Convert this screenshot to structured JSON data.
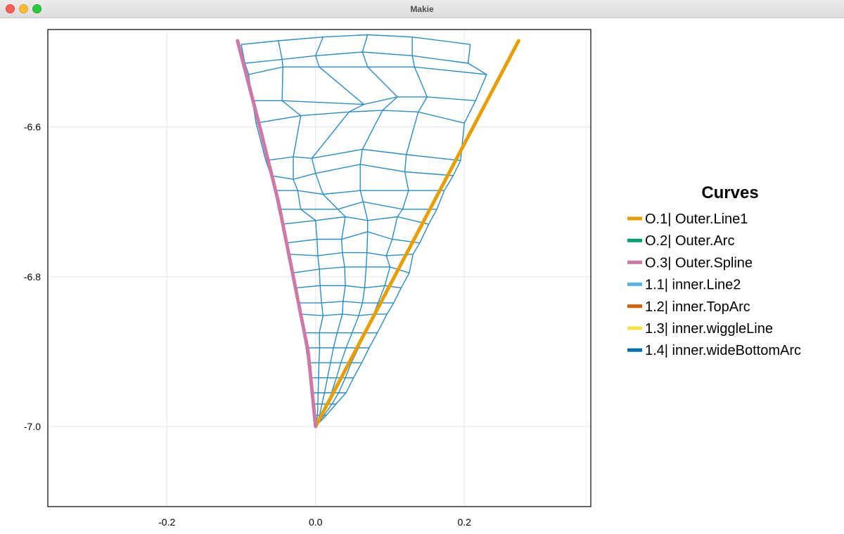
{
  "window": {
    "title": "Makie",
    "buttons": [
      "close",
      "minimize",
      "maximize"
    ]
  },
  "chart_data": {
    "type": "line",
    "xlim": [
      -0.36,
      0.37
    ],
    "ylim": [
      -7.107,
      -6.47
    ],
    "xticks": [
      -0.2,
      0.0,
      0.2
    ],
    "xtick_labels": [
      "-0.2",
      "0.0",
      "0.2"
    ],
    "yticks": [
      -6.6,
      -6.8,
      -7.0
    ],
    "ytick_labels": [
      "-6.6",
      "-6.8",
      "-7.0"
    ],
    "grid": true,
    "legend": {
      "title": "Curves",
      "placement": "right",
      "entries": [
        {
          "label": "O.1| Outer.Line1",
          "color": "#e69f00"
        },
        {
          "label": "O.2| Outer.Arc",
          "color": "#009e73"
        },
        {
          "label": "O.3| Outer.Spline",
          "color": "#cc79a7"
        },
        {
          "label": "1.1| inner.Line2",
          "color": "#56b4e9"
        },
        {
          "label": "1.2| inner.TopArc",
          "color": "#d55e00"
        },
        {
          "label": "1.3| inner.wiggleLine",
          "color": "#f0e442"
        },
        {
          "label": "1.4| inner.wideBottomArc",
          "color": "#0072b2"
        }
      ]
    },
    "series": [
      {
        "name": "O.1| Outer.Line1",
        "color": "#e69f00",
        "points": [
          [
            0.0,
            -7.0
          ],
          [
            0.273,
            -6.485
          ]
        ]
      },
      {
        "name": "O.3| Outer.Spline",
        "color": "#cc79a7",
        "points": [
          [
            0.0,
            -7.0
          ],
          [
            -0.01,
            -6.9
          ],
          [
            -0.03,
            -6.8
          ],
          [
            -0.05,
            -6.7
          ],
          [
            -0.075,
            -6.6
          ],
          [
            -0.105,
            -6.485
          ]
        ]
      }
    ],
    "mesh_color": "#2a8cc4",
    "mesh": {
      "grid": [
        [
          [
            0.0,
            -7.0
          ],
          [
            0.0,
            -7.0
          ],
          [
            0.0,
            -7.0
          ],
          [
            0.0,
            -7.0
          ],
          [
            0.0,
            -7.0
          ],
          [
            0.0,
            -7.0
          ]
        ],
        [
          [
            -0.001,
            -6.985
          ],
          [
            0.0025,
            -6.985
          ],
          [
            0.0055,
            -6.985
          ],
          [
            0.0085,
            -6.985
          ],
          [
            0.0115,
            -6.985
          ],
          [
            0.0145,
            -6.985
          ]
        ],
        [
          [
            -0.003,
            -6.97
          ],
          [
            0.003,
            -6.97
          ],
          [
            0.0085,
            -6.97
          ],
          [
            0.0155,
            -6.97
          ],
          [
            0.022,
            -6.97
          ],
          [
            0.0275,
            -6.97
          ]
        ],
        [
          [
            -0.005,
            -6.955
          ],
          [
            0.0035,
            -6.955
          ],
          [
            0.012,
            -6.955
          ],
          [
            0.0215,
            -6.955
          ],
          [
            0.031,
            -6.955
          ],
          [
            0.041,
            -6.955
          ]
        ],
        [
          [
            -0.007,
            -6.935
          ],
          [
            0.004,
            -6.935
          ],
          [
            0.016,
            -6.935
          ],
          [
            0.028,
            -6.935
          ],
          [
            0.04,
            -6.935
          ],
          [
            0.051,
            -6.935
          ]
        ],
        [
          [
            -0.01,
            -6.915
          ],
          [
            0.0045,
            -6.915
          ],
          [
            0.02,
            -6.915
          ],
          [
            0.034,
            -6.915
          ],
          [
            0.048,
            -6.915
          ],
          [
            0.062,
            -6.915
          ]
        ],
        [
          [
            -0.013,
            -6.895
          ],
          [
            0.0055,
            -6.895
          ],
          [
            0.024,
            -6.895
          ],
          [
            0.041,
            -6.895
          ],
          [
            0.058,
            -6.895
          ],
          [
            0.072,
            -6.895
          ]
        ],
        [
          [
            -0.016,
            -6.875
          ],
          [
            0.005,
            -6.875
          ],
          [
            0.029,
            -6.875
          ],
          [
            0.049,
            -6.875
          ],
          [
            0.067,
            -6.875
          ],
          [
            0.083,
            -6.875
          ]
        ],
        [
          [
            -0.021,
            -6.85
          ],
          [
            0.01,
            -6.852
          ],
          [
            0.036,
            -6.85
          ],
          [
            0.058,
            -6.852
          ],
          [
            0.078,
            -6.85
          ],
          [
            0.096,
            -6.85
          ]
        ],
        [
          [
            -0.023,
            -6.835
          ],
          [
            0.008,
            -6.835
          ],
          [
            0.037,
            -6.833
          ],
          [
            0.063,
            -6.835
          ],
          [
            0.084,
            -6.835
          ],
          [
            0.105,
            -6.835
          ]
        ],
        [
          [
            -0.026,
            -6.815
          ],
          [
            0.006,
            -6.812
          ],
          [
            0.04,
            -6.812
          ],
          [
            0.066,
            -6.815
          ],
          [
            0.093,
            -6.812
          ],
          [
            0.115,
            -6.815
          ]
        ],
        [
          [
            -0.031,
            -6.795
          ],
          [
            0.005,
            -6.79
          ],
          [
            0.039,
            -6.787
          ],
          [
            0.068,
            -6.787
          ],
          [
            0.1,
            -6.787
          ],
          [
            0.126,
            -6.795
          ]
        ],
        [
          [
            -0.036,
            -6.77
          ],
          [
            0.003,
            -6.772
          ],
          [
            0.036,
            -6.768
          ],
          [
            0.069,
            -6.768
          ],
          [
            0.095,
            -6.772
          ],
          [
            0.131,
            -6.77
          ]
        ],
        [
          [
            -0.04,
            -6.755
          ],
          [
            0.002,
            -6.75
          ],
          [
            0.035,
            -6.75
          ],
          [
            0.07,
            -6.74
          ],
          [
            0.103,
            -6.75
          ],
          [
            0.14,
            -6.755
          ]
        ],
        [
          [
            -0.045,
            -6.73
          ],
          [
            0.0,
            -6.725
          ],
          [
            0.04,
            -6.72
          ],
          [
            0.07,
            -6.725
          ],
          [
            0.11,
            -6.72
          ],
          [
            0.152,
            -6.73
          ]
        ],
        [
          [
            -0.05,
            -6.71
          ],
          [
            -0.02,
            -6.71
          ],
          [
            0.03,
            -6.71
          ],
          [
            0.064,
            -6.7
          ],
          [
            0.117,
            -6.71
          ],
          [
            0.163,
            -6.71
          ]
        ],
        [
          [
            -0.055,
            -6.685
          ],
          [
            -0.024,
            -6.685
          ],
          [
            0.01,
            -6.69
          ],
          [
            0.06,
            -6.685
          ],
          [
            0.125,
            -6.685
          ],
          [
            0.173,
            -6.685
          ]
        ],
        [
          [
            -0.06,
            -6.665
          ],
          [
            -0.03,
            -6.67
          ],
          [
            0.0,
            -6.662
          ],
          [
            0.06,
            -6.65
          ],
          [
            0.12,
            -6.66
          ],
          [
            0.185,
            -6.665
          ]
        ],
        [
          [
            -0.067,
            -6.645
          ],
          [
            -0.03,
            -6.64
          ],
          [
            -0.005,
            -6.642
          ],
          [
            0.063,
            -6.63
          ],
          [
            0.122,
            -6.637
          ],
          [
            0.195,
            -6.645
          ]
        ],
        [
          [
            -0.08,
            -6.595
          ],
          [
            -0.02,
            -6.585
          ],
          [
            0.045,
            -6.58
          ],
          [
            0.09,
            -6.578
          ],
          [
            0.138,
            -6.58
          ],
          [
            0.2,
            -6.595
          ]
        ],
        [
          [
            -0.085,
            -6.565
          ],
          [
            -0.045,
            -6.565
          ],
          [
            0.065,
            -6.57
          ],
          [
            0.11,
            -6.56
          ],
          [
            0.15,
            -6.56
          ],
          [
            0.215,
            -6.565
          ]
        ],
        [
          [
            -0.09,
            -6.53
          ],
          [
            -0.044,
            -6.52
          ],
          [
            0.005,
            -6.52
          ],
          [
            0.07,
            -6.52
          ],
          [
            0.133,
            -6.52
          ],
          [
            0.23,
            -6.53
          ]
        ],
        [
          [
            -0.095,
            -6.515
          ],
          [
            -0.045,
            -6.51
          ],
          [
            0.0,
            -6.505
          ],
          [
            0.063,
            -6.5
          ],
          [
            0.13,
            -6.505
          ],
          [
            0.205,
            -6.515
          ]
        ],
        [
          [
            -0.1,
            -6.49
          ],
          [
            -0.05,
            -6.485
          ],
          [
            0.01,
            -6.48
          ],
          [
            0.07,
            -6.477
          ],
          [
            0.13,
            -6.48
          ],
          [
            0.208,
            -6.49
          ]
        ]
      ]
    }
  }
}
